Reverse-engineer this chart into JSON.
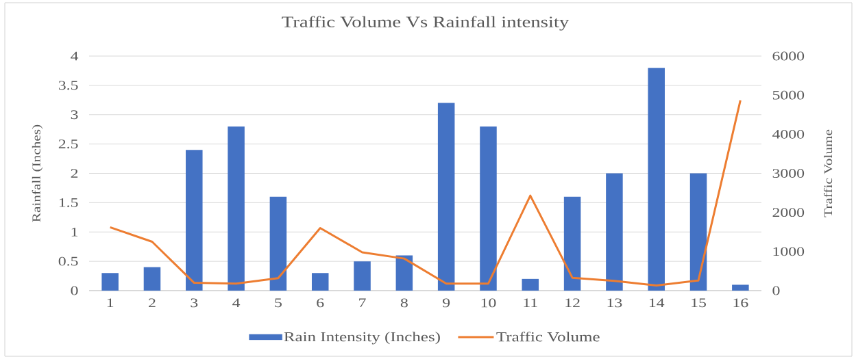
{
  "chart_data": {
    "type": "bar",
    "title": "Traffic Volume Vs Rainfall intensity",
    "categories": [
      "1",
      "2",
      "3",
      "4",
      "5",
      "6",
      "7",
      "8",
      "9",
      "10",
      "11",
      "12",
      "13",
      "14",
      "15",
      "16"
    ],
    "ylabel": "Rainfall (Inches)",
    "y2label": "Traffic Volume",
    "ylim": [
      0,
      4
    ],
    "yticks": [
      0,
      0.5,
      1,
      1.5,
      2,
      2.5,
      3,
      3.5,
      4
    ],
    "y2lim": [
      0,
      6000
    ],
    "y2ticks": [
      0,
      1000,
      2000,
      3000,
      4000,
      5000,
      6000
    ],
    "series": [
      {
        "name": "Rain Intensity (Inches)",
        "color": "#4472c4",
        "values": [
          0.3,
          0.4,
          2.4,
          2.8,
          1.6,
          0.3,
          0.5,
          0.6,
          3.2,
          2.8,
          0.2,
          1.6,
          2.0,
          3.8,
          2.0,
          0.1
        ]
      },
      {
        "name": "Traffic Volume",
        "type": "line",
        "axis": "y2",
        "color": "#ed7d31",
        "values": [
          1620,
          1250,
          200,
          180,
          320,
          1600,
          980,
          820,
          180,
          180,
          2430,
          330,
          250,
          130,
          260,
          4870
        ]
      }
    ],
    "grid": "y",
    "legend": "bottom",
    "marker": "none"
  }
}
